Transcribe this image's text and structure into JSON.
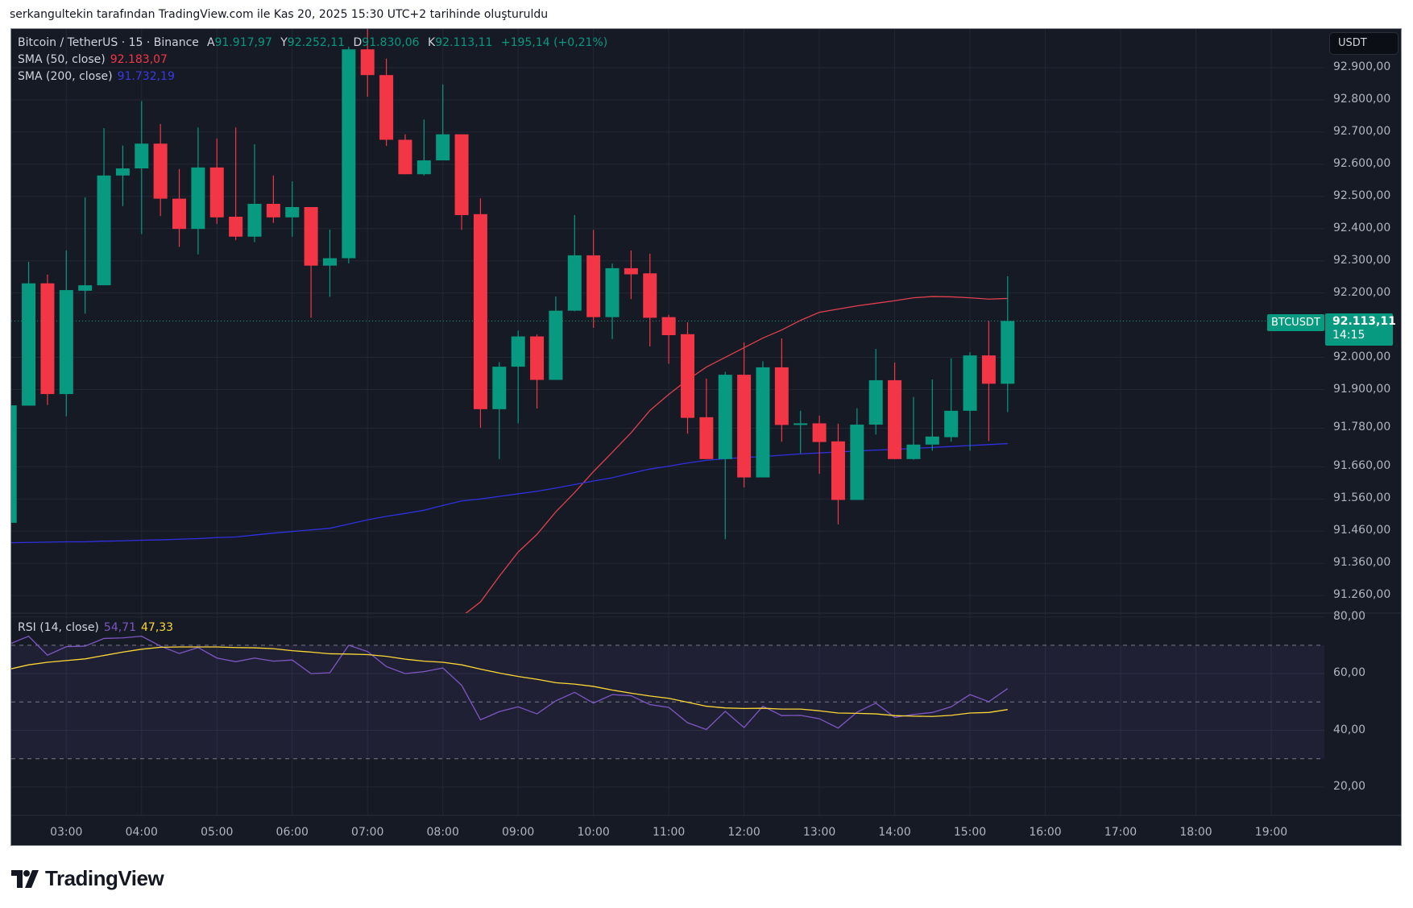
{
  "header": {
    "caption": "serkangultekin tarafından TradingView.com ile Kas 20, 2025 15:30 UTC+2 tarihinde oluşturuldu"
  },
  "legend": {
    "symbol": "Bitcoin / TetherUS · 15 · Binance",
    "o_label": "A",
    "o": "91.917,97",
    "h_label": "Y",
    "h": "92.252,11",
    "l_label": "D",
    "l": "91.830,06",
    "c_label": "K",
    "c": "92.113,11",
    "change": "+195,14 (+0,21%)",
    "sma50_label": "SMA (50, close)",
    "sma50_value": "92.183,07",
    "sma200_label": "SMA (200, close)",
    "sma200_value": "91.732,19",
    "rsi_label": "RSI (14, close)",
    "rsi_value": "54,71",
    "rsi_ma_value": "47,33"
  },
  "price_axis": {
    "currency": "USDT"
  },
  "tags": {
    "symbol": "BTCUSDT",
    "price": "92.113,11",
    "countdown": "14:15"
  },
  "brand": {
    "name": "TradingView"
  },
  "colors": {
    "background": "#161a25",
    "grid": "#232735",
    "up": "#089981",
    "down": "#f23645",
    "sma50": "#e0404e",
    "sma200": "#3030e0",
    "rsi": "#7e57c2",
    "rsi_ma": "#fdd835",
    "rsi_band": "#7e57c2"
  },
  "chart_data": [
    {
      "type": "candlestick",
      "interval": "15",
      "ylim": [
        91200,
        93050
      ],
      "grid": true,
      "y_ticks": [
        {
          "label": "92.900,00",
          "value": 92900
        },
        {
          "label": "92.800,00",
          "value": 92800
        },
        {
          "label": "92.700,00",
          "value": 92700
        },
        {
          "label": "92.600,00",
          "value": 92600
        },
        {
          "label": "92.500,00",
          "value": 92500
        },
        {
          "label": "92.400,00",
          "value": 92400
        },
        {
          "label": "92.300,00",
          "value": 92300
        },
        {
          "label": "92.200,00",
          "value": 92200
        },
        {
          "label": "92.000,00",
          "value": 92000
        },
        {
          "label": "91.900,00",
          "value": 91900
        },
        {
          "label": "91.780,00",
          "value": 91780
        },
        {
          "label": "91.660,00",
          "value": 91660
        },
        {
          "label": "91.560,00",
          "value": 91560
        },
        {
          "label": "91.460,00",
          "value": 91460
        },
        {
          "label": "91.360,00",
          "value": 91360
        },
        {
          "label": "91.260,00",
          "value": 91260
        }
      ],
      "x_ticks": [
        "03:00",
        "04:00",
        "05:00",
        "06:00",
        "07:00",
        "08:00",
        "09:00",
        "10:00",
        "11:00",
        "12:00",
        "13:00",
        "14:00",
        "15:00",
        "16:00",
        "17:00",
        "18:00",
        "19:00"
      ],
      "candles": [
        [
          "02:15",
          91486,
          91851,
          91486,
          91851
        ],
        [
          "02:30",
          91850,
          92297,
          91850,
          92230
        ],
        [
          "02:45",
          92230,
          92257,
          91852,
          91886
        ],
        [
          "03:00",
          91886,
          92332,
          91817,
          92209
        ],
        [
          "03:15",
          92207,
          92497,
          92136,
          92224
        ],
        [
          "03:30",
          92224,
          92712,
          92224,
          92565
        ],
        [
          "03:45",
          92565,
          92658,
          92470,
          92587
        ],
        [
          "04:00",
          92587,
          92796,
          92383,
          92664
        ],
        [
          "04:15",
          92664,
          92725,
          92439,
          92493
        ],
        [
          "04:30",
          92493,
          92585,
          92343,
          92399
        ],
        [
          "04:45",
          92399,
          92714,
          92320,
          92590
        ],
        [
          "05:00",
          92590,
          92680,
          92415,
          92435
        ],
        [
          "05:15",
          92437,
          92714,
          92364,
          92375
        ],
        [
          "05:30",
          92375,
          92662,
          92358,
          92477
        ],
        [
          "05:45",
          92477,
          92565,
          92418,
          92435
        ],
        [
          "06:00",
          92435,
          92547,
          92375,
          92467
        ],
        [
          "06:15",
          92467,
          92467,
          92123,
          92285
        ],
        [
          "06:30",
          92285,
          92397,
          92188,
          92308
        ],
        [
          "06:45",
          92308,
          92965,
          92292,
          92957
        ],
        [
          "07:00",
          92957,
          93020,
          92810,
          92877
        ],
        [
          "07:15",
          92877,
          92928,
          92657,
          92676
        ],
        [
          "07:30",
          92676,
          92693,
          92569,
          92569
        ],
        [
          "07:45",
          92569,
          92739,
          92565,
          92612
        ],
        [
          "08:00",
          92612,
          92848,
          92612,
          92693
        ],
        [
          "08:15",
          92693,
          92693,
          92396,
          92442
        ],
        [
          "08:30",
          92445,
          92494,
          91781,
          91839
        ],
        [
          "08:45",
          91839,
          91985,
          91684,
          91971
        ],
        [
          "09:00",
          91971,
          92083,
          91795,
          92065
        ],
        [
          "09:15",
          92065,
          92071,
          91841,
          91930
        ],
        [
          "09:30",
          91930,
          92189,
          91930,
          92145
        ],
        [
          "09:45",
          92145,
          92442,
          92143,
          92317
        ],
        [
          "10:00",
          92317,
          92396,
          92092,
          92125
        ],
        [
          "10:15",
          92125,
          92291,
          92057,
          92277
        ],
        [
          "10:30",
          92277,
          92332,
          92181,
          92258
        ],
        [
          "10:45",
          92261,
          92322,
          92034,
          92123
        ],
        [
          "11:00",
          92125,
          92132,
          91980,
          92069
        ],
        [
          "11:15",
          92072,
          92109,
          91763,
          91812
        ],
        [
          "11:30",
          91814,
          91934,
          91684,
          91684
        ],
        [
          "11:45",
          91684,
          91955,
          91435,
          91946
        ],
        [
          "12:00",
          91946,
          92046,
          91596,
          91627
        ],
        [
          "12:15",
          91627,
          91988,
          91627,
          91969
        ],
        [
          "12:30",
          91969,
          92059,
          91738,
          91790
        ],
        [
          "12:45",
          91790,
          91834,
          91702,
          91795
        ],
        [
          "13:00",
          91795,
          91819,
          91638,
          91737
        ],
        [
          "13:15",
          91739,
          91794,
          91481,
          91557
        ],
        [
          "13:30",
          91557,
          91842,
          91557,
          91791
        ],
        [
          "13:45",
          91791,
          92026,
          91760,
          91929
        ],
        [
          "14:00",
          91929,
          91984,
          91684,
          91684
        ],
        [
          "14:15",
          91684,
          91877,
          91682,
          91729
        ],
        [
          "14:30",
          91729,
          91931,
          91710,
          91754
        ],
        [
          "14:45",
          91752,
          91997,
          91738,
          91834
        ],
        [
          "15:00",
          91834,
          92016,
          91710,
          92006
        ],
        [
          "15:15",
          92006,
          92113,
          91740,
          91918
        ],
        [
          "15:30",
          91917.97,
          92252.11,
          91830.06,
          92113.11
        ]
      ],
      "last_price": 92113.11,
      "series": [
        {
          "name": "SMA (50, close)",
          "values": [
            null,
            null,
            null,
            null,
            null,
            null,
            null,
            null,
            null,
            null,
            null,
            null,
            null,
            null,
            null,
            null,
            null,
            null,
            null,
            null,
            null,
            null,
            null,
            null,
            91195,
            91240,
            91320,
            91395,
            91450,
            91520,
            91580,
            91645,
            91705,
            91766,
            91835,
            91885,
            91930,
            91970,
            92000,
            92030,
            92060,
            92085,
            92115,
            92140,
            92150,
            92160,
            92168,
            92176,
            92185,
            92189,
            92188,
            92185,
            92181,
            92183.07
          ]
        },
        {
          "name": "SMA (200, close)",
          "values": [
            91424,
            91425,
            91426,
            91427,
            91427,
            91429,
            91430,
            91432,
            91433,
            91435,
            91437,
            91440,
            91442,
            91448,
            91454,
            91459,
            91464,
            91469,
            91482,
            91495,
            91506,
            91515,
            91525,
            91540,
            91554,
            91560,
            91568,
            91576,
            91584,
            91594,
            91605,
            91616,
            91626,
            91640,
            91653,
            91662,
            91672,
            91680,
            91685,
            91689,
            91692,
            91696,
            91700,
            91703,
            91706,
            91709,
            91712,
            91714,
            91717,
            91720,
            91723,
            91726,
            91729,
            91732.19
          ]
        }
      ]
    },
    {
      "type": "line",
      "title": "RSI (14, close)",
      "ylim": [
        15,
        82
      ],
      "y_ticks": [
        {
          "label": "80,00",
          "value": 80
        },
        {
          "label": "60,00",
          "value": 60
        },
        {
          "label": "40,00",
          "value": 40
        },
        {
          "label": "20,00",
          "value": 20
        }
      ],
      "bands": {
        "upper": 70,
        "middle": 50,
        "lower": 30
      },
      "series": [
        {
          "name": "RSI",
          "values": [
            70.5,
            73.2,
            66.5,
            69.5,
            69.7,
            72.4,
            72.6,
            73.2,
            69.7,
            67.1,
            69.2,
            65.5,
            64.2,
            65.5,
            64.4,
            64.8,
            60.0,
            60.3,
            70.0,
            67.8,
            62.5,
            60.0,
            60.7,
            62.0,
            55.9,
            43.7,
            46.6,
            48.3,
            45.8,
            50.4,
            53.4,
            49.6,
            52.6,
            52.2,
            49.1,
            48.1,
            42.7,
            40.3,
            46.7,
            41.0,
            48.5,
            45.2,
            45.3,
            44.1,
            40.8,
            46.4,
            49.6,
            44.6,
            45.6,
            46.3,
            48.3,
            52.6,
            50.1,
            54.71
          ]
        },
        {
          "name": "RSI-based MA",
          "values": [
            61.6,
            63.1,
            64.0,
            64.6,
            65.2,
            66.4,
            67.6,
            68.6,
            69.3,
            69.4,
            69.4,
            69.4,
            69.2,
            69.1,
            68.8,
            68.1,
            67.6,
            67.0,
            66.9,
            66.7,
            66.1,
            65.1,
            64.4,
            64.0,
            63.1,
            61.6,
            60.2,
            59.0,
            58.0,
            56.8,
            56.3,
            55.5,
            54.2,
            53.1,
            52.1,
            51.3,
            49.9,
            48.5,
            47.9,
            47.7,
            47.8,
            47.5,
            47.5,
            46.9,
            46.1,
            46.0,
            45.8,
            45.2,
            45.0,
            44.9,
            45.3,
            46.1,
            46.3,
            47.33
          ]
        }
      ]
    }
  ]
}
